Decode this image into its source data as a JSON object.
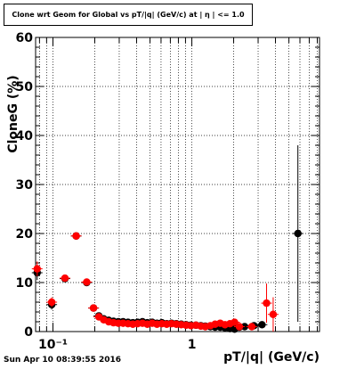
{
  "title": "Clone wrt Geom for Global vs pT/|q| (GeV/c) at | η | <= 1.0",
  "timestamp": "Sun Apr 10 08:39:55 2016",
  "chart_data": {
    "type": "scatter",
    "title": "Clone wrt Geom for Global vs pT/|q| (GeV/c) at | η | <= 1.0",
    "xlabel": "pT/|q| (GeV/c)",
    "ylabel": "CloneG (%)",
    "xscale": "log",
    "xlim": [
      0.075,
      8.3
    ],
    "ylim": [
      0,
      60
    ],
    "yticks": [
      0,
      10,
      20,
      30,
      40,
      50,
      60
    ],
    "xtick_labels": [
      {
        "value": 0.1,
        "label": "10⁻¹"
      },
      {
        "value": 1,
        "label": "1"
      }
    ],
    "grid": true,
    "legend": "none",
    "series": [
      {
        "color": "#000000",
        "points": [
          {
            "x": 0.077,
            "y": 12.0,
            "yerr": 1.5
          },
          {
            "x": 0.098,
            "y": 5.5,
            "yerr": 1.0
          },
          {
            "x": 0.122,
            "y": 10.8,
            "yerr": 0.6
          },
          {
            "x": 0.147,
            "y": 19.5,
            "yerr": 0.5
          },
          {
            "x": 0.175,
            "y": 10.0,
            "yerr": 0.4
          },
          {
            "x": 0.196,
            "y": 4.8,
            "yerr": 0.3
          },
          {
            "x": 0.214,
            "y": 3.2,
            "yerr": 0.2
          },
          {
            "x": 0.232,
            "y": 2.6,
            "yerr": 0.2
          },
          {
            "x": 0.252,
            "y": 2.3,
            "yerr": 0.2
          },
          {
            "x": 0.273,
            "y": 2.1,
            "yerr": 0.2
          },
          {
            "x": 0.296,
            "y": 2.0,
            "yerr": 0.2
          },
          {
            "x": 0.32,
            "y": 2.0,
            "yerr": 0.2
          },
          {
            "x": 0.347,
            "y": 1.9,
            "yerr": 0.2
          },
          {
            "x": 0.376,
            "y": 1.8,
            "yerr": 0.2
          },
          {
            "x": 0.407,
            "y": 1.9,
            "yerr": 0.2
          },
          {
            "x": 0.441,
            "y": 2.0,
            "yerr": 0.2
          },
          {
            "x": 0.478,
            "y": 1.8,
            "yerr": 0.2
          },
          {
            "x": 0.518,
            "y": 1.9,
            "yerr": 0.2
          },
          {
            "x": 0.561,
            "y": 1.7,
            "yerr": 0.2
          },
          {
            "x": 0.608,
            "y": 1.8,
            "yerr": 0.2
          },
          {
            "x": 0.659,
            "y": 1.6,
            "yerr": 0.2
          },
          {
            "x": 0.714,
            "y": 1.7,
            "yerr": 0.2
          },
          {
            "x": 0.774,
            "y": 1.6,
            "yerr": 0.2
          },
          {
            "x": 0.839,
            "y": 1.5,
            "yerr": 0.2
          },
          {
            "x": 0.909,
            "y": 1.4,
            "yerr": 0.2
          },
          {
            "x": 0.985,
            "y": 1.3,
            "yerr": 0.2
          },
          {
            "x": 1.07,
            "y": 1.3,
            "yerr": 0.2
          },
          {
            "x": 1.16,
            "y": 1.2,
            "yerr": 0.2
          },
          {
            "x": 1.25,
            "y": 1.1,
            "yerr": 0.2
          },
          {
            "x": 1.36,
            "y": 1.0,
            "yerr": 0.2
          },
          {
            "x": 1.47,
            "y": 0.9,
            "yerr": 0.2
          },
          {
            "x": 1.6,
            "y": 0.9,
            "yerr": 0.2
          },
          {
            "x": 1.73,
            "y": 0.8,
            "yerr": 0.3
          },
          {
            "x": 1.88,
            "y": 0.6,
            "yerr": 0.3
          },
          {
            "x": 2.03,
            "y": 0.5,
            "yerr": 0.3
          },
          {
            "x": 2.2,
            "y": 0.9,
            "yerr": 0.3
          },
          {
            "x": 2.4,
            "y": 1.0,
            "yerr": 0.4
          },
          {
            "x": 2.8,
            "y": 1.2,
            "yerr": 0.5
          },
          {
            "x": 3.2,
            "y": 1.4,
            "yerr": 0.6
          },
          {
            "x": 5.8,
            "y": 20.0,
            "yerr": 18.0
          }
        ]
      },
      {
        "color": "#ff0000",
        "points": [
          {
            "x": 0.077,
            "y": 12.8,
            "yerr": 1.5
          },
          {
            "x": 0.098,
            "y": 6.0,
            "yerr": 1.0
          },
          {
            "x": 0.122,
            "y": 10.9,
            "yerr": 0.6
          },
          {
            "x": 0.147,
            "y": 19.5,
            "yerr": 0.5
          },
          {
            "x": 0.175,
            "y": 10.1,
            "yerr": 0.4
          },
          {
            "x": 0.196,
            "y": 4.8,
            "yerr": 0.3
          },
          {
            "x": 0.214,
            "y": 3.0,
            "yerr": 0.2
          },
          {
            "x": 0.232,
            "y": 2.4,
            "yerr": 0.2
          },
          {
            "x": 0.252,
            "y": 2.0,
            "yerr": 0.2
          },
          {
            "x": 0.273,
            "y": 1.8,
            "yerr": 0.2
          },
          {
            "x": 0.296,
            "y": 1.7,
            "yerr": 0.2
          },
          {
            "x": 0.32,
            "y": 1.7,
            "yerr": 0.2
          },
          {
            "x": 0.347,
            "y": 1.6,
            "yerr": 0.2
          },
          {
            "x": 0.376,
            "y": 1.5,
            "yerr": 0.2
          },
          {
            "x": 0.407,
            "y": 1.6,
            "yerr": 0.2
          },
          {
            "x": 0.441,
            "y": 1.7,
            "yerr": 0.2
          },
          {
            "x": 0.478,
            "y": 1.5,
            "yerr": 0.2
          },
          {
            "x": 0.518,
            "y": 1.7,
            "yerr": 0.2
          },
          {
            "x": 0.561,
            "y": 1.5,
            "yerr": 0.2
          },
          {
            "x": 0.608,
            "y": 1.6,
            "yerr": 0.2
          },
          {
            "x": 0.659,
            "y": 1.5,
            "yerr": 0.2
          },
          {
            "x": 0.714,
            "y": 1.6,
            "yerr": 0.2
          },
          {
            "x": 0.774,
            "y": 1.5,
            "yerr": 0.2
          },
          {
            "x": 0.839,
            "y": 1.4,
            "yerr": 0.2
          },
          {
            "x": 0.909,
            "y": 1.3,
            "yerr": 0.2
          },
          {
            "x": 0.985,
            "y": 1.2,
            "yerr": 0.2
          },
          {
            "x": 1.07,
            "y": 1.3,
            "yerr": 0.2
          },
          {
            "x": 1.16,
            "y": 1.1,
            "yerr": 0.2
          },
          {
            "x": 1.25,
            "y": 1.0,
            "yerr": 0.2
          },
          {
            "x": 1.36,
            "y": 1.2,
            "yerr": 0.2
          },
          {
            "x": 1.47,
            "y": 1.5,
            "yerr": 0.2
          },
          {
            "x": 1.6,
            "y": 1.7,
            "yerr": 0.2
          },
          {
            "x": 1.73,
            "y": 1.4,
            "yerr": 0.3
          },
          {
            "x": 1.88,
            "y": 1.6,
            "yerr": 0.3
          },
          {
            "x": 2.03,
            "y": 1.9,
            "yerr": 0.3
          },
          {
            "x": 2.2,
            "y": 1.0,
            "yerr": 0.3
          },
          {
            "x": 2.7,
            "y": 1.0,
            "yerr": 0.5
          },
          {
            "x": 3.45,
            "y": 5.8,
            "yerr": 4.0
          },
          {
            "x": 3.85,
            "y": 3.5,
            "yerr": 3.5
          }
        ]
      }
    ]
  }
}
